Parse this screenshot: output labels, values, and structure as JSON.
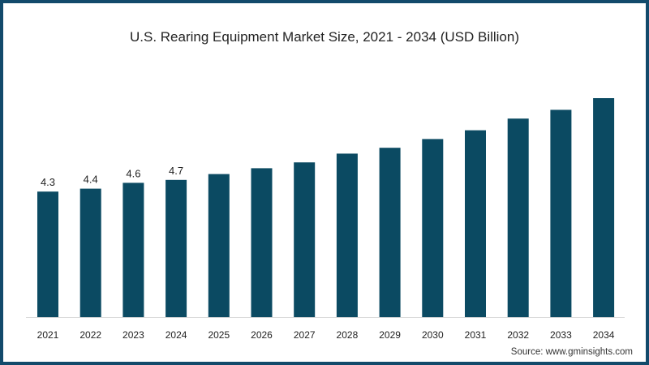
{
  "chart_data": {
    "type": "bar",
    "title": "U.S. Rearing Equipment Market Size, 2021 - 2034 (USD Billion)",
    "xlabel": "",
    "ylabel": "",
    "categories": [
      "2021",
      "2022",
      "2023",
      "2024",
      "2025",
      "2026",
      "2027",
      "2028",
      "2029",
      "2030",
      "2031",
      "2032",
      "2033",
      "2034"
    ],
    "values": [
      4.3,
      4.4,
      4.6,
      4.7,
      4.9,
      5.1,
      5.3,
      5.6,
      5.8,
      6.1,
      6.4,
      6.8,
      7.1,
      7.5
    ],
    "data_labels": [
      "4.3",
      "4.4",
      "4.6",
      "4.7",
      "",
      "",
      "",
      "",
      "",
      "",
      "",
      "",
      "",
      ""
    ],
    "ylim": [
      0,
      8
    ],
    "grid": false,
    "bar_color": "#0b4a62",
    "source": "Source: www.gminsights.com"
  }
}
